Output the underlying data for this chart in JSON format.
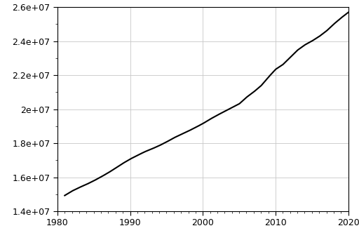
{
  "title": "",
  "xlabel": "",
  "ylabel": "",
  "xlim": [
    1980,
    2020
  ],
  "ylim": [
    14000000.0,
    26000000.0
  ],
  "xticks": [
    1980,
    1990,
    2000,
    2010,
    2020
  ],
  "yticks": [
    14000000.0,
    16000000.0,
    18000000.0,
    20000000.0,
    22000000.0,
    24000000.0,
    26000000.0
  ],
  "line_color": "#000000",
  "line_width": 1.5,
  "background_color": "#ffffff",
  "grid_color": "#c8c8c8",
  "grid_linestyle": "-",
  "grid_linewidth": 0.6,
  "border_color": "#000000",
  "years": [
    1981,
    1982,
    1983,
    1984,
    1985,
    1986,
    1987,
    1988,
    1989,
    1990,
    1991,
    1992,
    1993,
    1994,
    1995,
    1996,
    1997,
    1998,
    1999,
    2000,
    2001,
    2002,
    2003,
    2004,
    2005,
    2006,
    2007,
    2008,
    2009,
    2010,
    2011,
    2012,
    2013,
    2014,
    2015,
    2016,
    2017,
    2018,
    2019,
    2020
  ],
  "population": [
    14923600,
    15184200,
    15393700,
    15579400,
    15788300,
    16018400,
    16263700,
    16532200,
    16814400,
    17065100,
    17284000,
    17494200,
    17667200,
    17855800,
    18071700,
    18310700,
    18517000,
    18711900,
    18926800,
    19153400,
    19413200,
    19651400,
    19872100,
    20090400,
    20310400,
    20697900,
    21015800,
    21374000,
    21874000,
    22342000,
    22620600,
    23041900,
    23464300,
    23775100,
    24007300,
    24276100,
    24598900,
    25001000,
    25364300,
    25693100
  ]
}
